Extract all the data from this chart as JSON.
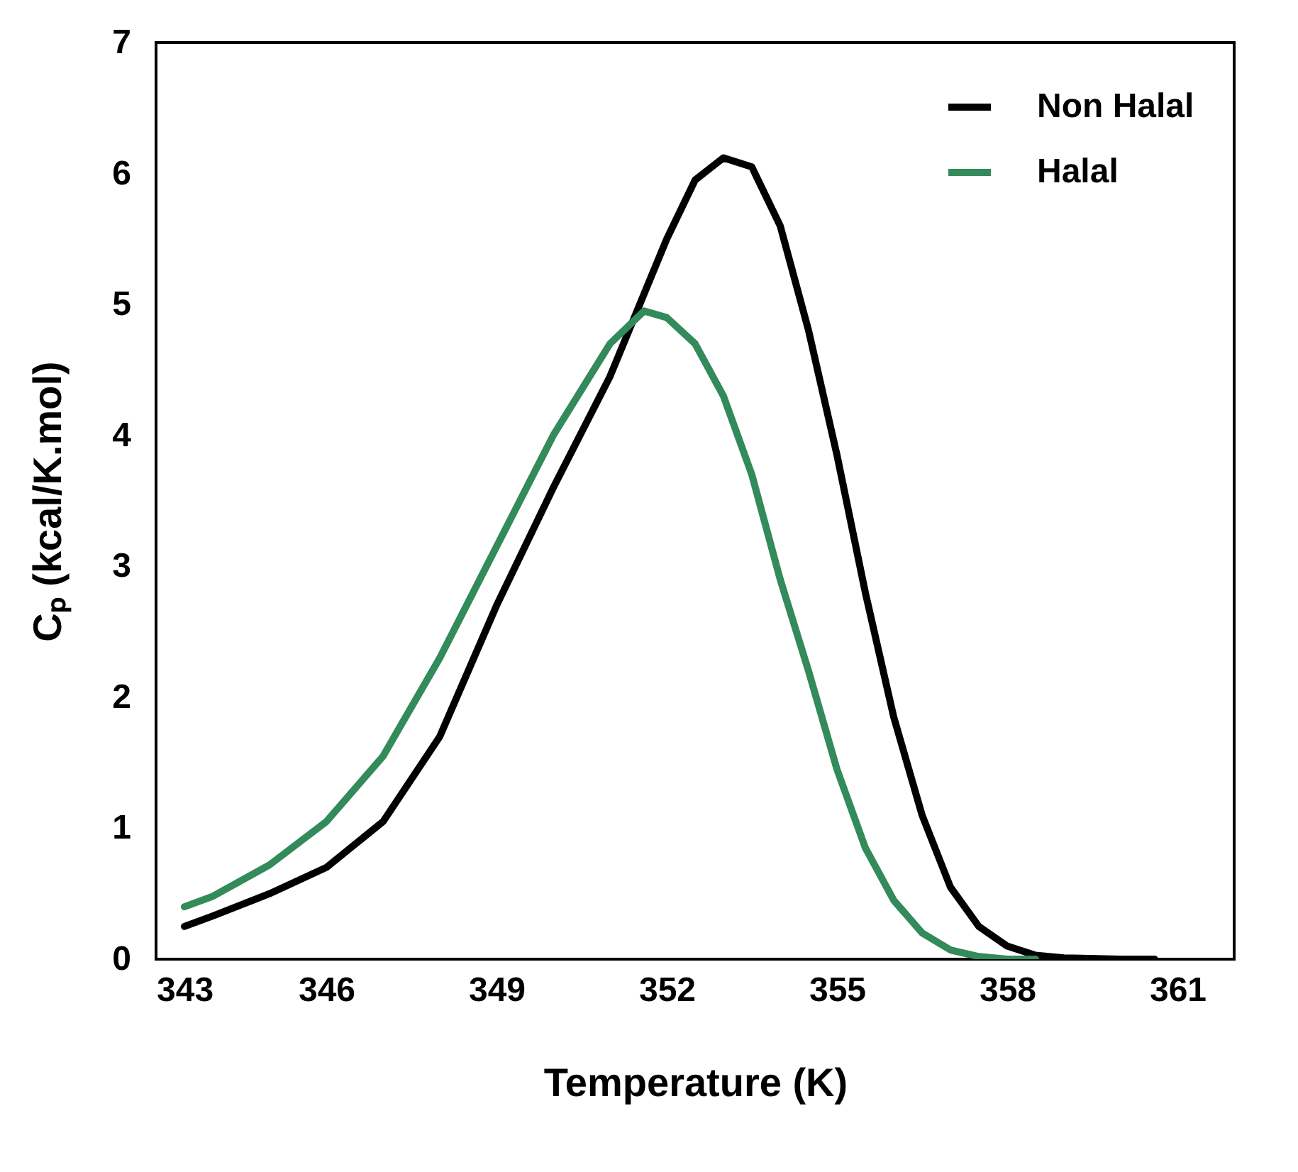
{
  "chart_data": {
    "type": "line",
    "xlabel": "Temperature (K)",
    "ylabel": "Cₚ (kcal/K.mol)",
    "xlim": [
      343,
      362
    ],
    "xticks": [
      343,
      346,
      349,
      352,
      355,
      358,
      361
    ],
    "ylim": [
      0,
      7
    ],
    "yticks": [
      0,
      1,
      2,
      3,
      4,
      5,
      6,
      7
    ],
    "grid": false,
    "legend": "top right",
    "marker": "none",
    "line_style": "solid",
    "series": [
      {
        "name": "Non Halal",
        "color": "#000000",
        "x": [
          343.5,
          344,
          345,
          346,
          347,
          348,
          349,
          350,
          351,
          352,
          352.5,
          353,
          353.5,
          354,
          354.5,
          355,
          355.5,
          356,
          356.5,
          357,
          357.5,
          358,
          358.5,
          359,
          360,
          360.6
        ],
        "values": [
          0.25,
          0.33,
          0.5,
          0.7,
          1.05,
          1.7,
          2.7,
          3.6,
          4.45,
          5.5,
          5.95,
          6.12,
          6.05,
          5.6,
          4.8,
          3.85,
          2.8,
          1.85,
          1.1,
          0.55,
          0.25,
          0.1,
          0.03,
          0.01,
          0,
          0
        ]
      },
      {
        "name": "Halal",
        "color": "#338a5a",
        "x": [
          343.5,
          344,
          345,
          346,
          347,
          348,
          349,
          350,
          351,
          351.6,
          352,
          352.5,
          353,
          353.5,
          354,
          354.5,
          355,
          355.5,
          356,
          356.5,
          357,
          357.5,
          358,
          358.5
        ],
        "values": [
          0.4,
          0.48,
          0.72,
          1.05,
          1.55,
          2.3,
          3.15,
          4.0,
          4.7,
          4.95,
          4.9,
          4.7,
          4.3,
          3.7,
          2.9,
          2.2,
          1.45,
          0.85,
          0.45,
          0.2,
          0.07,
          0.02,
          0,
          0
        ]
      }
    ]
  }
}
